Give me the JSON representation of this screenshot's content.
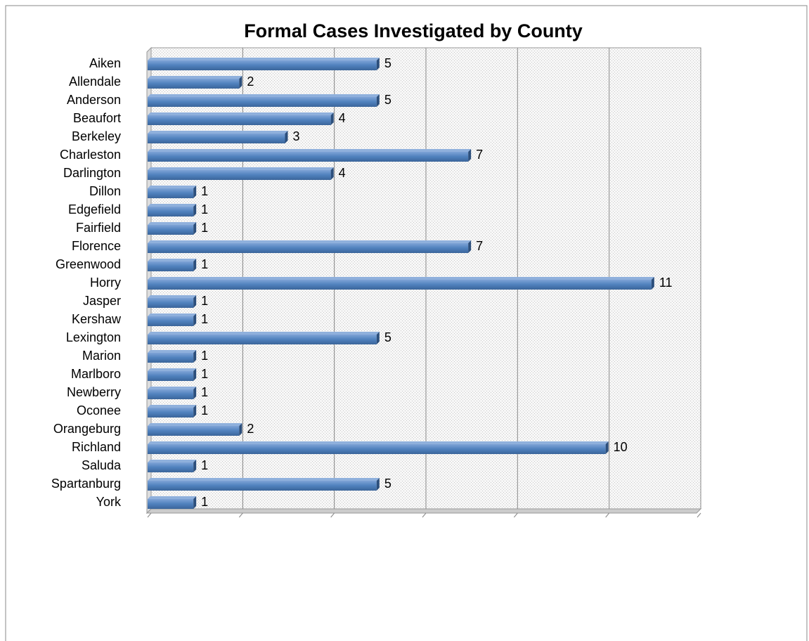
{
  "chart_data": {
    "type": "bar",
    "orientation": "horizontal",
    "title": "Formal Cases Investigated by County",
    "categories": [
      "Aiken",
      "Allendale",
      "Anderson",
      "Beaufort",
      "Berkeley",
      "Charleston",
      "Darlington",
      "Dillon",
      "Edgefield",
      "Fairfield",
      "Florence",
      "Greenwood",
      "Horry",
      "Jasper",
      "Kershaw",
      "Lexington",
      "Marion",
      "Marlboro",
      "Newberry",
      "Oconee",
      "Orangeburg",
      "Richland",
      "Saluda",
      "Spartanburg",
      "York"
    ],
    "values": [
      5,
      2,
      5,
      4,
      3,
      7,
      4,
      1,
      1,
      1,
      7,
      1,
      11,
      1,
      1,
      5,
      1,
      1,
      1,
      1,
      2,
      10,
      1,
      5,
      1
    ],
    "color": "#4f81bd",
    "xlim": [
      0,
      12
    ],
    "xticks": [
      0,
      2,
      4,
      6,
      8,
      10,
      12
    ],
    "grid": true,
    "data_labels": true
  }
}
